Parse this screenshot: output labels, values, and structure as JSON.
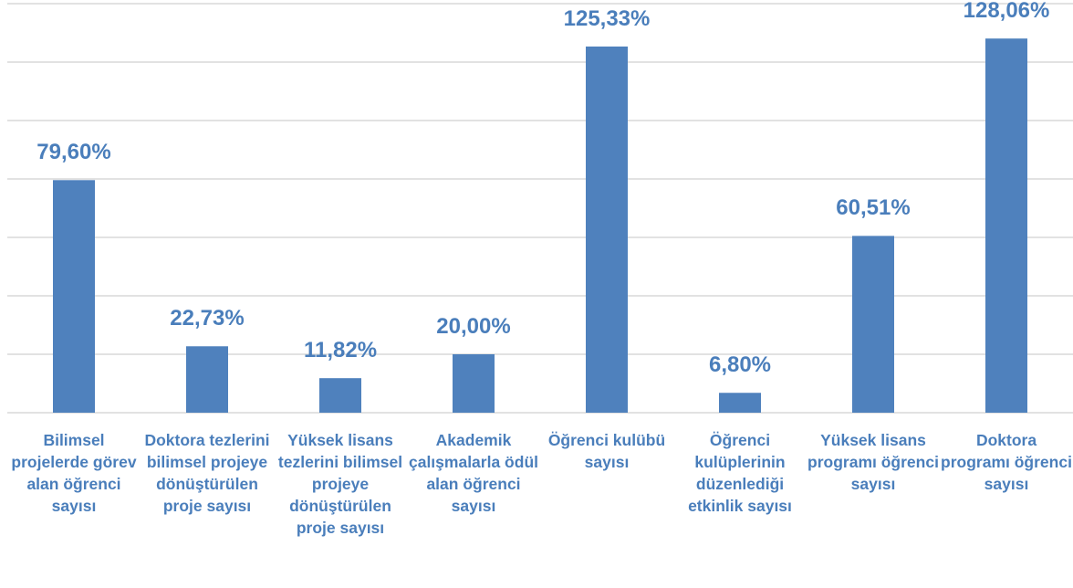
{
  "chart_data": {
    "type": "bar",
    "categories": [
      "Bilimsel projelerde görev alan öğrenci sayısı",
      "Doktora tezlerini bilimsel projeye dönüştürülen proje sayısı",
      "Yüksek lisans tezlerini bilimsel projeye dönüştürülen proje sayısı",
      "Akademik çalışmalarla ödül alan öğrenci sayısı",
      "Öğrenci kulübü sayısı",
      "Öğrenci kulüplerinin düzenlediği etkinlik sayısı",
      "Yüksek lisans programı öğrenci sayısı",
      "Doktora programı öğrenci sayısı"
    ],
    "values": [
      79.6,
      22.73,
      11.82,
      20.0,
      125.33,
      6.8,
      60.51,
      128.06
    ],
    "value_labels": [
      "79,60%",
      "22,73%",
      "11,82%",
      "20,00%",
      "125,33%",
      "6,80%",
      "60,51%",
      "128,06%"
    ],
    "color": "#4f81bd",
    "ylim": [
      0,
      140
    ],
    "yticks": [
      0,
      20,
      40,
      60,
      80,
      100,
      120,
      140
    ],
    "grid": true
  }
}
